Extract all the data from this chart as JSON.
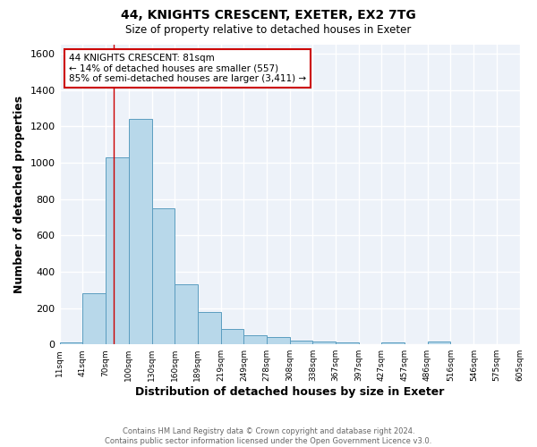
{
  "title1": "44, KNIGHTS CRESCENT, EXETER, EX2 7TG",
  "title2": "Size of property relative to detached houses in Exeter",
  "xlabel": "Distribution of detached houses by size in Exeter",
  "ylabel": "Number of detached properties",
  "bar_color": "#b8d8ea",
  "bar_edge_color": "#5b9dc0",
  "bg_color": "#edf2f9",
  "grid_color": "white",
  "bins": [
    11,
    41,
    70,
    100,
    130,
    160,
    189,
    219,
    249,
    278,
    308,
    338,
    367,
    397,
    427,
    457,
    486,
    516,
    546,
    575,
    605
  ],
  "counts": [
    10,
    280,
    1030,
    1240,
    750,
    330,
    180,
    85,
    48,
    38,
    20,
    17,
    12,
    0,
    12,
    0,
    15,
    0,
    0,
    0
  ],
  "tick_labels": [
    "11sqm",
    "41sqm",
    "70sqm",
    "100sqm",
    "130sqm",
    "160sqm",
    "189sqm",
    "219sqm",
    "249sqm",
    "278sqm",
    "308sqm",
    "338sqm",
    "367sqm",
    "397sqm",
    "427sqm",
    "457sqm",
    "486sqm",
    "516sqm",
    "546sqm",
    "575sqm",
    "605sqm"
  ],
  "vline_x": 81,
  "vline_color": "#cc0000",
  "annotation_line1": "44 KNIGHTS CRESCENT: 81sqm",
  "annotation_line2": "← 14% of detached houses are smaller (557)",
  "annotation_line3": "85% of semi-detached houses are larger (3,411) →",
  "annotation_box_color": "white",
  "annotation_box_edge": "#cc0000",
  "ylim": [
    0,
    1650
  ],
  "yticks": [
    0,
    200,
    400,
    600,
    800,
    1000,
    1200,
    1400,
    1600
  ],
  "footer1": "Contains HM Land Registry data © Crown copyright and database right 2024.",
  "footer2": "Contains public sector information licensed under the Open Government Licence v3.0."
}
